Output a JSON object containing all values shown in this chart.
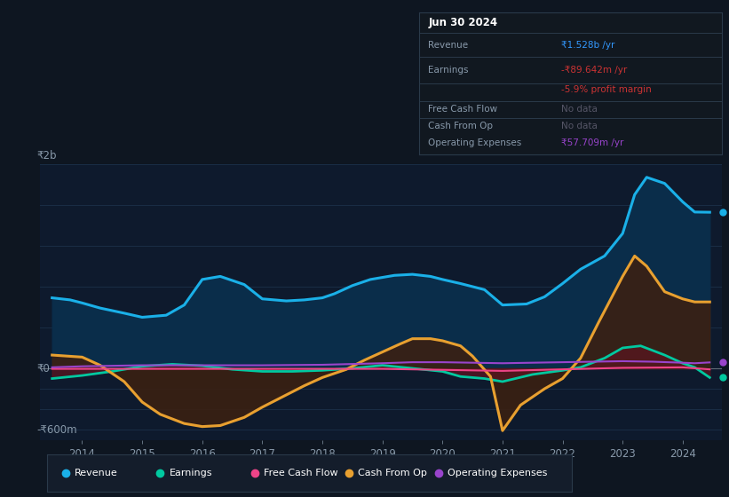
{
  "bg_color": "#0e1621",
  "plot_bg_color": "#0e1a2d",
  "grid_color": "#1a2d45",
  "y_label_top": "₹2b",
  "y_label_zero": "₹0",
  "y_label_bottom": "-₹600m",
  "y_max": 2000,
  "y_min": -700,
  "y_zero": 0,
  "x_ticks": [
    2014,
    2015,
    2016,
    2017,
    2018,
    2019,
    2020,
    2021,
    2022,
    2023,
    2024
  ],
  "revenue": {
    "x": [
      2013.5,
      2013.8,
      2014.0,
      2014.3,
      2014.7,
      2015.0,
      2015.4,
      2015.7,
      2016.0,
      2016.3,
      2016.7,
      2017.0,
      2017.4,
      2017.7,
      2018.0,
      2018.2,
      2018.5,
      2018.8,
      2019.0,
      2019.2,
      2019.5,
      2019.8,
      2020.0,
      2020.3,
      2020.7,
      2021.0,
      2021.4,
      2021.7,
      2022.0,
      2022.3,
      2022.7,
      2023.0,
      2023.2,
      2023.4,
      2023.7,
      2024.0,
      2024.2,
      2024.45
    ],
    "y": [
      690,
      670,
      640,
      590,
      540,
      500,
      520,
      620,
      870,
      900,
      820,
      680,
      660,
      670,
      690,
      730,
      810,
      870,
      890,
      910,
      920,
      900,
      870,
      830,
      770,
      620,
      630,
      700,
      830,
      970,
      1100,
      1320,
      1700,
      1870,
      1810,
      1630,
      1530,
      1528
    ],
    "color": "#1ab0e8",
    "fill_color": "#0a2d4a",
    "lw": 2.2
  },
  "earnings": {
    "x": [
      2013.5,
      2014.0,
      2014.5,
      2015.0,
      2015.5,
      2016.0,
      2016.5,
      2017.0,
      2017.5,
      2018.0,
      2018.5,
      2019.0,
      2019.5,
      2020.0,
      2020.3,
      2020.7,
      2021.0,
      2021.5,
      2022.0,
      2022.3,
      2022.7,
      2023.0,
      2023.3,
      2023.7,
      2024.0,
      2024.2,
      2024.45
    ],
    "y": [
      -100,
      -70,
      -30,
      20,
      40,
      25,
      -10,
      -30,
      -30,
      -20,
      0,
      30,
      0,
      -30,
      -80,
      -100,
      -130,
      -60,
      -20,
      10,
      100,
      200,
      220,
      130,
      50,
      10,
      -90
    ],
    "color": "#00c9a0",
    "fill_color": "#5a1520",
    "lw": 2.0
  },
  "cash_from_op": {
    "x": [
      2013.5,
      2014.0,
      2014.3,
      2014.7,
      2015.0,
      2015.3,
      2015.7,
      2016.0,
      2016.3,
      2016.7,
      2017.0,
      2017.4,
      2017.7,
      2018.0,
      2018.4,
      2018.7,
      2019.0,
      2019.3,
      2019.5,
      2019.8,
      2020.0,
      2020.3,
      2020.5,
      2020.8,
      2021.0,
      2021.3,
      2021.7,
      2022.0,
      2022.3,
      2022.6,
      2023.0,
      2023.2,
      2023.4,
      2023.7,
      2024.0,
      2024.2,
      2024.45
    ],
    "y": [
      130,
      110,
      30,
      -130,
      -330,
      -450,
      -540,
      -570,
      -560,
      -480,
      -380,
      -260,
      -170,
      -90,
      -10,
      80,
      160,
      240,
      290,
      290,
      270,
      220,
      120,
      -80,
      -610,
      -360,
      -200,
      -100,
      100,
      450,
      900,
      1100,
      1000,
      750,
      680,
      650,
      650
    ],
    "color": "#e8a030",
    "fill_color": "#3d2010",
    "lw": 2.2
  },
  "free_cash_flow": {
    "x": [
      2013.5,
      2014.0,
      2015.0,
      2016.0,
      2017.0,
      2018.0,
      2019.0,
      2019.5,
      2020.0,
      2020.5,
      2021.0,
      2022.0,
      2023.0,
      2024.0,
      2024.45
    ],
    "y": [
      -5,
      -5,
      -5,
      -5,
      -5,
      -5,
      -5,
      -10,
      -15,
      -20,
      -25,
      -10,
      5,
      10,
      -10
    ],
    "color": "#ee4488",
    "lw": 1.5
  },
  "op_expenses": {
    "x": [
      2013.5,
      2014.0,
      2015.0,
      2016.0,
      2017.0,
      2018.0,
      2019.0,
      2019.5,
      2020.0,
      2020.5,
      2021.0,
      2021.5,
      2022.0,
      2022.5,
      2023.0,
      2023.5,
      2024.0,
      2024.2,
      2024.45
    ],
    "y": [
      10,
      20,
      30,
      30,
      30,
      35,
      50,
      60,
      60,
      55,
      50,
      55,
      60,
      65,
      70,
      65,
      55,
      50,
      58
    ],
    "color": "#9944cc",
    "lw": 1.5
  },
  "legend": [
    {
      "label": "Revenue",
      "color": "#1ab0e8"
    },
    {
      "label": "Earnings",
      "color": "#00c9a0"
    },
    {
      "label": "Free Cash Flow",
      "color": "#ee4488"
    },
    {
      "label": "Cash From Op",
      "color": "#e8a030"
    },
    {
      "label": "Operating Expenses",
      "color": "#9944cc"
    }
  ],
  "info_box": {
    "date": "Jun 30 2024",
    "rows": [
      {
        "label": "Revenue",
        "value": "₹1.528b /yr",
        "value_color": "#3399ff"
      },
      {
        "label": "Earnings",
        "value": "-₹89.642m /yr",
        "value_color": "#cc3333"
      },
      {
        "label": "",
        "value": "-5.9% profit margin",
        "value_color": "#cc3333"
      },
      {
        "label": "Free Cash Flow",
        "value": "No data",
        "value_color": "#666666"
      },
      {
        "label": "Cash From Op",
        "value": "No data",
        "value_color": "#666666"
      },
      {
        "label": "Operating Expenses",
        "value": "₹57.709m /yr",
        "value_color": "#9944cc"
      }
    ]
  }
}
